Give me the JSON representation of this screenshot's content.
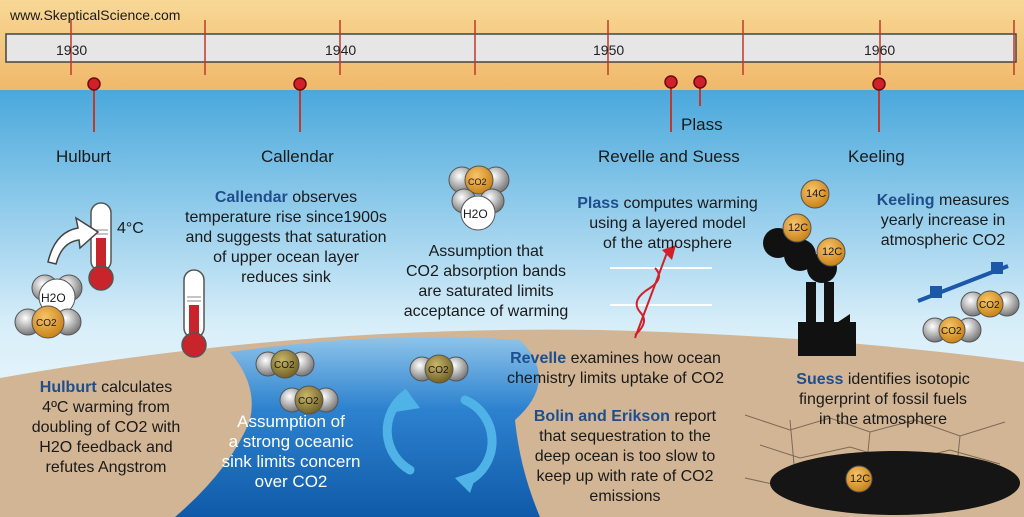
{
  "watermark": "www.SkepticalScience.com",
  "timeline": {
    "ticks": [
      "1930",
      "1940",
      "1950",
      "1960"
    ]
  },
  "people": {
    "hulburt": "Hulburt",
    "callendar": "Callendar",
    "plass": "Plass",
    "revelle_suess": "Revelle and Suess",
    "keeling": "Keeling"
  },
  "labels": {
    "temp": "4°C",
    "h2o": "H2O",
    "co2": "CO2",
    "c14": "14C",
    "c12": "12C"
  },
  "captions": {
    "hulburt": {
      "name": "Hulburt",
      "l1": " calculates",
      "l2": "4ºC warming from",
      "l3": "doubling of CO2  with",
      "l4": "H2O feedback and",
      "l5": "refutes Angstrom"
    },
    "callendar": {
      "name": "Callendar",
      "l1": " observes",
      "l2": "temperature rise since1900s",
      "l3": "and suggests that saturation",
      "l4": "of upper ocean layer",
      "l5": "reduces sink"
    },
    "ocean": {
      "l1": "Assumption of",
      "l2": "a strong oceanic",
      "l3": "sink limits concern",
      "l4": "over CO2"
    },
    "bands": {
      "l1": "Assumption that",
      "l2": "CO2 absorption bands",
      "l3": "are saturated limits",
      "l4": "acceptance of warming"
    },
    "plass": {
      "name": "Plass",
      "l1": " computes warming",
      "l2": "using a layered model",
      "l3": "of the atmosphere"
    },
    "keeling": {
      "name": "Keeling",
      "l1": " measures",
      "l2": "yearly increase in",
      "l3": "atmospheric CO2"
    },
    "revelle": {
      "name": "Revelle",
      "l1": " examines how ocean",
      "l2": "chemistry limits uptake of CO2"
    },
    "suess": {
      "name": "Suess",
      "l1": " identifies isotopic",
      "l2": "fingerprint of fossil fuels",
      "l3": "in the atmosphere"
    },
    "bolin": {
      "name": "Bolin and Erikson",
      "l1": " report",
      "l2": "that sequestration to the",
      "l3": "deep ocean is too slow to",
      "l4": "keep up with rate of CO2",
      "l5": "emissions"
    }
  },
  "colors": {
    "timeline_bar": "#e6e6e6",
    "band": "#f5c97a",
    "sky_top": "#4aa8dc",
    "ground": "#d1b594",
    "ocean": "#1e6fc0",
    "marker": "#d0202a"
  }
}
